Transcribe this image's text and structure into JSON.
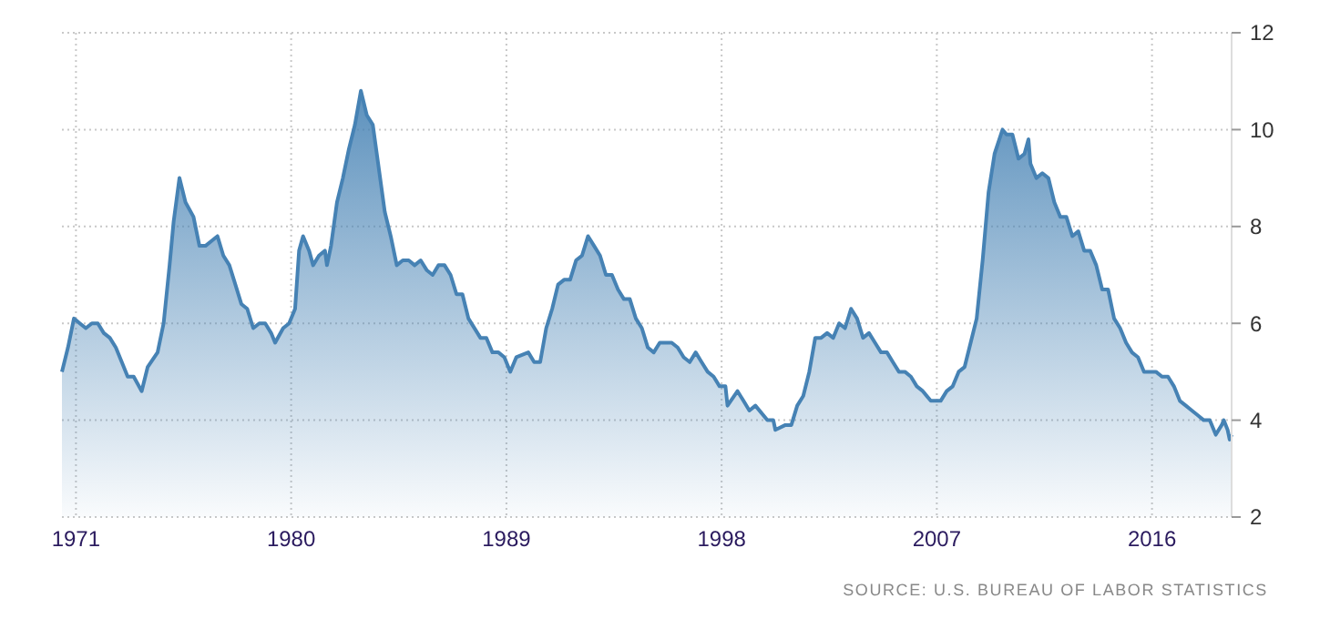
{
  "chart_data": {
    "type": "area",
    "xlim": [
      "1970-06",
      "2019-05"
    ],
    "ylim": [
      2,
      12
    ],
    "yticks": [
      2,
      4,
      6,
      8,
      10,
      12
    ],
    "xticks": [
      {
        "value": "1971",
        "label": "1971"
      },
      {
        "value": "1980",
        "label": "1980"
      },
      {
        "value": "1989",
        "label": "1989"
      },
      {
        "value": "1998",
        "label": "1998"
      },
      {
        "value": "2007",
        "label": "2007"
      },
      {
        "value": "2016",
        "label": "2016"
      }
    ],
    "grid": true,
    "annotations": [
      "SOURCE: U.S. BUREAU OF LABOR STATISTICS"
    ],
    "x": [
      "1970-06",
      "1970-09",
      "1970-12",
      "1971-03",
      "1971-06",
      "1971-09",
      "1971-12",
      "1972-03",
      "1972-06",
      "1972-09",
      "1972-12",
      "1973-03",
      "1973-06",
      "1973-10",
      "1974-01",
      "1974-06",
      "1974-09",
      "1974-12",
      "1975-02",
      "1975-05",
      "1975-08",
      "1975-12",
      "1976-03",
      "1976-06",
      "1976-09",
      "1976-12",
      "1977-03",
      "1977-06",
      "1977-09",
      "1977-12",
      "1978-03",
      "1978-06",
      "1978-09",
      "1978-12",
      "1979-03",
      "1979-05",
      "1979-09",
      "1979-12",
      "1980-03",
      "1980-05",
      "1980-07",
      "1980-10",
      "1980-12",
      "1981-03",
      "1981-06",
      "1981-07",
      "1981-09",
      "1981-12",
      "1982-03",
      "1982-06",
      "1982-09",
      "1982-12",
      "1983-03",
      "1983-06",
      "1983-09",
      "1983-12",
      "1984-03",
      "1984-06",
      "1984-09",
      "1984-12",
      "1985-03",
      "1985-06",
      "1985-09",
      "1985-12",
      "1986-03",
      "1986-06",
      "1986-09",
      "1986-12",
      "1987-03",
      "1987-06",
      "1987-12",
      "1988-03",
      "1988-06",
      "1988-09",
      "1988-12",
      "1989-03",
      "1989-06",
      "1989-12",
      "1990-03",
      "1990-06",
      "1990-09",
      "1990-12",
      "1991-03",
      "1991-06",
      "1991-09",
      "1991-12",
      "1992-03",
      "1992-06",
      "1992-09",
      "1992-12",
      "1993-03",
      "1993-06",
      "1993-09",
      "1993-12",
      "1994-03",
      "1994-06",
      "1994-09",
      "1994-12",
      "1995-03",
      "1995-06",
      "1995-09",
      "1995-12",
      "1996-03",
      "1996-06",
      "1996-09",
      "1996-12",
      "1997-03",
      "1997-06",
      "1997-09",
      "1997-12",
      "1998-03",
      "1998-04",
      "1998-09",
      "1998-12",
      "1999-03",
      "1999-06",
      "1999-12",
      "2000-03",
      "2000-04",
      "2000-09",
      "2000-12",
      "2001-03",
      "2001-06",
      "2001-09",
      "2001-12",
      "2002-03",
      "2002-06",
      "2002-09",
      "2002-12",
      "2003-03",
      "2003-06",
      "2003-09",
      "2003-12",
      "2004-03",
      "2004-06",
      "2004-09",
      "2004-12",
      "2005-03",
      "2005-06",
      "2005-09",
      "2005-12",
      "2006-03",
      "2006-06",
      "2006-10",
      "2006-12",
      "2007-03",
      "2007-06",
      "2007-09",
      "2007-12",
      "2008-03",
      "2008-06",
      "2008-09",
      "2008-12",
      "2009-03",
      "2009-06",
      "2009-10",
      "2009-12",
      "2010-03",
      "2010-06",
      "2010-09",
      "2010-11",
      "2010-12",
      "2011-03",
      "2011-06",
      "2011-09",
      "2011-12",
      "2012-03",
      "2012-06",
      "2012-09",
      "2012-12",
      "2013-03",
      "2013-06",
      "2013-09",
      "2013-12",
      "2014-03",
      "2014-06",
      "2014-09",
      "2014-12",
      "2015-03",
      "2015-06",
      "2015-09",
      "2015-12",
      "2016-03",
      "2016-06",
      "2016-09",
      "2016-12",
      "2017-03",
      "2017-06",
      "2017-09",
      "2017-12",
      "2018-03",
      "2018-06",
      "2018-09",
      "2018-12",
      "2019-01",
      "2019-03",
      "2019-04",
      "2019-05"
    ],
    "series": [
      {
        "color": "#4682b4",
        "values": [
          5.0,
          5.5,
          6.1,
          6.0,
          5.9,
          6.0,
          6.0,
          5.8,
          5.7,
          5.5,
          5.2,
          4.9,
          4.9,
          4.6,
          5.1,
          5.4,
          6.0,
          7.2,
          8.1,
          9.0,
          8.5,
          8.2,
          7.6,
          7.6,
          7.7,
          7.8,
          7.4,
          7.2,
          6.8,
          6.4,
          6.3,
          5.9,
          6.0,
          6.0,
          5.8,
          5.6,
          5.9,
          6.0,
          6.3,
          7.5,
          7.8,
          7.5,
          7.2,
          7.4,
          7.5,
          7.2,
          7.6,
          8.5,
          9.0,
          9.6,
          10.1,
          10.8,
          10.3,
          10.1,
          9.2,
          8.3,
          7.8,
          7.2,
          7.3,
          7.3,
          7.2,
          7.3,
          7.1,
          7.0,
          7.2,
          7.2,
          7.0,
          6.6,
          6.6,
          6.1,
          5.7,
          5.7,
          5.4,
          5.4,
          5.3,
          5.0,
          5.3,
          5.4,
          5.2,
          5.2,
          5.9,
          6.3,
          6.8,
          6.9,
          6.9,
          7.3,
          7.4,
          7.8,
          7.6,
          7.4,
          7.0,
          7.0,
          6.7,
          6.5,
          6.5,
          6.1,
          5.9,
          5.5,
          5.4,
          5.6,
          5.6,
          5.6,
          5.5,
          5.3,
          5.2,
          5.4,
          5.2,
          5.0,
          4.9,
          4.7,
          4.7,
          4.3,
          4.6,
          4.4,
          4.2,
          4.3,
          4.0,
          4.0,
          3.8,
          3.9,
          3.9,
          4.3,
          4.5,
          5.0,
          5.7,
          5.7,
          5.8,
          5.7,
          6.0,
          5.9,
          6.3,
          6.1,
          5.7,
          5.8,
          5.6,
          5.4,
          5.4,
          5.2,
          5.0,
          5.0,
          4.9,
          4.7,
          4.6,
          4.4,
          4.4,
          4.4,
          4.6,
          4.7,
          5.0,
          5.1,
          5.6,
          6.1,
          7.3,
          8.7,
          9.5,
          10.0,
          9.9,
          9.9,
          9.4,
          9.5,
          9.8,
          9.3,
          9.0,
          9.1,
          9.0,
          8.5,
          8.2,
          8.2,
          7.8,
          7.9,
          7.5,
          7.5,
          7.2,
          6.7,
          6.7,
          6.1,
          5.9,
          5.6,
          5.4,
          5.3,
          5.0,
          5.0,
          5.0,
          4.9,
          4.9,
          4.7,
          4.4,
          4.3,
          4.2,
          4.1,
          4.0,
          4.0,
          3.7,
          3.9,
          4.0,
          3.8,
          3.6,
          3.7
        ]
      }
    ]
  }
}
